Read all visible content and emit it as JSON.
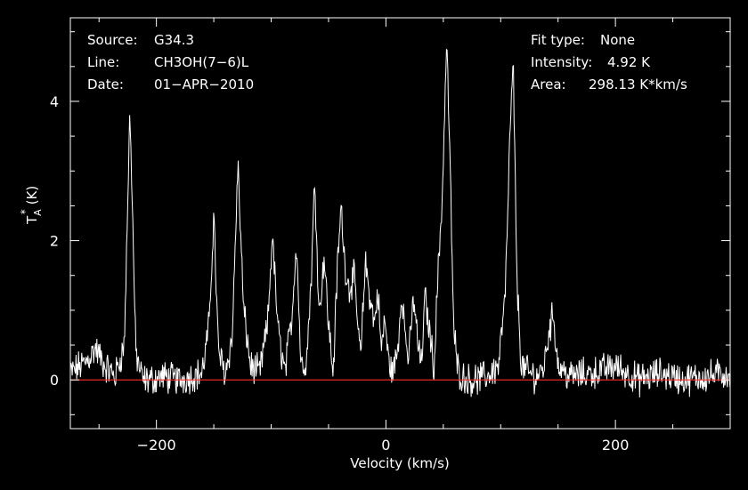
{
  "chart_data": {
    "type": "line",
    "title": "",
    "xlabel": "Velocity (km/s)",
    "ylabel_base": "T",
    "ylabel_sub": "A",
    "ylabel_sup": "*",
    "ylabel_unit": "(K)",
    "xlim": [
      -275,
      300
    ],
    "ylim": [
      -0.7,
      5.2
    ],
    "grid": false,
    "x_ticks": [
      -200,
      0,
      200
    ],
    "y_ticks": [
      0,
      2,
      4
    ],
    "x_tick_labels": [
      "−200",
      "0",
      "200"
    ],
    "y_tick_labels": [
      "0",
      "2",
      "4"
    ],
    "baseline": 0,
    "series": [
      {
        "name": "",
        "x": [
          -275,
          -262,
          -253,
          -245,
          -236,
          -228,
          -223,
          -218,
          -212,
          -205,
          -195,
          -180,
          -160,
          -154,
          -150,
          -146,
          -140,
          -134,
          -129,
          -124,
          -118,
          -110,
          -103,
          -99,
          -94,
          -88,
          -82,
          -78,
          -74,
          -69,
          -65,
          -62,
          -58,
          -54,
          -50,
          -46,
          -42,
          -39,
          -36,
          -32,
          -28,
          -25,
          -22,
          -18,
          -14,
          -10,
          -7,
          -4,
          -1,
          2,
          6,
          10,
          14,
          17,
          20,
          24,
          28,
          31,
          34,
          38,
          42,
          45,
          49,
          53,
          56,
          59,
          62,
          66,
          72,
          78,
          88,
          98,
          104,
          108,
          111,
          114,
          118,
          124,
          132,
          138,
          142,
          146,
          150,
          160,
          180,
          200,
          220,
          240,
          260,
          280,
          300
        ],
        "y": [
          0.1,
          0.25,
          0.45,
          0.2,
          0.05,
          0.5,
          3.9,
          0.4,
          0.0,
          0.0,
          0.05,
          0.0,
          0.1,
          0.8,
          2.4,
          0.4,
          0.1,
          0.6,
          3.1,
          1.0,
          0.2,
          0.1,
          0.8,
          2.1,
          0.7,
          0.1,
          0.9,
          2.0,
          0.2,
          0.3,
          1.5,
          2.9,
          0.9,
          1.8,
          0.8,
          0.1,
          1.7,
          2.5,
          1.7,
          1.3,
          1.5,
          0.9,
          0.3,
          1.7,
          1.2,
          0.8,
          1.3,
          0.4,
          0.9,
          0.3,
          0.1,
          0.4,
          1.3,
          0.6,
          0.3,
          1.2,
          0.5,
          0.2,
          1.2,
          0.7,
          0.2,
          1.4,
          2.6,
          4.9,
          3.0,
          0.8,
          0.2,
          0.05,
          0.0,
          0.0,
          0.05,
          0.2,
          1.2,
          3.5,
          4.5,
          1.5,
          0.2,
          0.1,
          0.05,
          0.2,
          0.7,
          0.95,
          0.2,
          0.05,
          0.1,
          0.2,
          0.0,
          0.1,
          0.0,
          0.05,
          0.1
        ]
      }
    ]
  },
  "info": {
    "source_label": "Source:",
    "source_value": "G34.3",
    "line_label": "Line:",
    "line_value": "CH3OH(7−6)L",
    "date_label": "Date:",
    "date_value": "01−APR−2010",
    "fit_label": "Fit type:",
    "fit_value": "None",
    "intensity_label": "Intensity:",
    "intensity_value": "4.92 K",
    "area_label": "Area:",
    "area_value": "298.13 K*km/s"
  },
  "colors": {
    "background": "#000000",
    "foreground": "#ffffff",
    "baseline": "#ff2a2a"
  }
}
